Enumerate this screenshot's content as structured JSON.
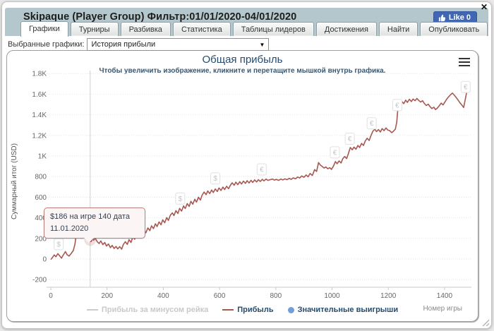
{
  "window": {
    "close_icon": "✕"
  },
  "header": {
    "title": "Skipaque (Player Group) Фильтр:01/01/2020-04/01/2020",
    "like_button": {
      "label": "Like 0"
    }
  },
  "tabs": [
    {
      "label": "Графики",
      "active": true
    },
    {
      "label": "Турниры",
      "active": false
    },
    {
      "label": "Разбивка",
      "active": false
    },
    {
      "label": "Статистика",
      "active": false
    },
    {
      "label": "Таблицы лидеров",
      "active": false
    },
    {
      "label": "Достижения",
      "active": false
    },
    {
      "label": "Найти",
      "active": false
    },
    {
      "label": "Опубликовать",
      "active": false
    }
  ],
  "controls": {
    "label": "Выбранные графики:",
    "selected": "История прибыли",
    "dropdown_icon": "▼"
  },
  "chart": {
    "title": "Общая прибыль",
    "subtitle": "Чтобы увеличить изображение, кликните и перетащите мышкой внутрь графика.",
    "tooltip_line1": "$186 на игре 140 дата",
    "tooltip_line2": "11.01.2020",
    "legend": [
      {
        "label": "Прибыль за минусом рейка",
        "marker": "line",
        "color": "#cccccc",
        "text_color": "#c9c9c9",
        "enabled": false
      },
      {
        "label": "Прибыль",
        "marker": "line",
        "color": "#a85751",
        "text_color": "#274b6d",
        "enabled": true
      },
      {
        "label": "Значительные выигрыши",
        "marker": "circle",
        "color": "#6f9fd8",
        "text_color": "#274b6d",
        "enabled": true
      }
    ]
  },
  "colors": {
    "header_bg": "#b4c7cc",
    "like_blue": "#4267b2",
    "line_red": "#a85751",
    "grid": "#e4e4e4",
    "tick_text": "#666666",
    "title_navy": "#274b6d"
  },
  "chart_data": {
    "type": "line",
    "title": "Общая прибыль",
    "subtitle": "Чтобы увеличить изображение, кликните и перетащите мышкой внутрь графика.",
    "xlabel": "Номер игры",
    "ylabel": "Суммарный итог (USD)",
    "xlim": [
      0,
      1495
    ],
    "ylim": [
      -270,
      1870
    ],
    "grid": true,
    "legend_position": "bottom",
    "x_ticks": [
      {
        "v": 0,
        "label": "0"
      },
      {
        "v": 200,
        "label": "200"
      },
      {
        "v": 400,
        "label": "400"
      },
      {
        "v": 600,
        "label": "600"
      },
      {
        "v": 800,
        "label": "800"
      },
      {
        "v": 1000,
        "label": "1000"
      },
      {
        "v": 1200,
        "label": "1200"
      },
      {
        "v": 1400,
        "label": "1400"
      }
    ],
    "y_ticks": [
      {
        "v": -200,
        "label": "-200"
      },
      {
        "v": 0,
        "label": "0"
      },
      {
        "v": 200,
        "label": "200"
      },
      {
        "v": 400,
        "label": "400"
      },
      {
        "v": 600,
        "label": "600"
      },
      {
        "v": 800,
        "label": "800"
      },
      {
        "v": 1000,
        "label": "1K"
      },
      {
        "v": 1200,
        "label": "1.2K"
      },
      {
        "v": 1400,
        "label": "1.4K"
      },
      {
        "v": 1600,
        "label": "1.6K"
      },
      {
        "v": 1800,
        "label": "1.8K"
      }
    ],
    "series": [
      {
        "name": "Прибыль",
        "color": "#a85751",
        "visible": true,
        "points": [
          [
            0,
            -5
          ],
          [
            6,
            15
          ],
          [
            12,
            40
          ],
          [
            18,
            22
          ],
          [
            25,
            52
          ],
          [
            32,
            28
          ],
          [
            38,
            8
          ],
          [
            45,
            42
          ],
          [
            52,
            72
          ],
          [
            58,
            42
          ],
          [
            65,
            28
          ],
          [
            72,
            52
          ],
          [
            80,
            82
          ],
          [
            86,
            148
          ],
          [
            90,
            232
          ],
          [
            96,
            212
          ],
          [
            102,
            238
          ],
          [
            108,
            202
          ],
          [
            115,
            225
          ],
          [
            122,
            205
          ],
          [
            130,
            215
          ],
          [
            136,
            192
          ],
          [
            140,
            186
          ],
          [
            146,
            212
          ],
          [
            152,
            182
          ],
          [
            158,
            202
          ],
          [
            165,
            168
          ],
          [
            172,
            150
          ],
          [
            178,
            175
          ],
          [
            185,
            140
          ],
          [
            192,
            160
          ],
          [
            198,
            126
          ],
          [
            205,
            146
          ],
          [
            212,
            110
          ],
          [
            218,
            132
          ],
          [
            225,
            102
          ],
          [
            232,
            122
          ],
          [
            238,
            98
          ],
          [
            245,
            120
          ],
          [
            252,
            96
          ],
          [
            258,
            142
          ],
          [
            265,
            168
          ],
          [
            272,
            142
          ],
          [
            278,
            188
          ],
          [
            285,
            160
          ],
          [
            292,
            218
          ],
          [
            298,
            192
          ],
          [
            305,
            242
          ],
          [
            312,
            215
          ],
          [
            318,
            262
          ],
          [
            325,
            235
          ],
          [
            332,
            282
          ],
          [
            338,
            255
          ],
          [
            345,
            302
          ],
          [
            352,
            275
          ],
          [
            358,
            322
          ],
          [
            365,
            295
          ],
          [
            372,
            342
          ],
          [
            378,
            315
          ],
          [
            385,
            360
          ],
          [
            392,
            332
          ],
          [
            398,
            380
          ],
          [
            405,
            352
          ],
          [
            412,
            402
          ],
          [
            418,
            375
          ],
          [
            425,
            425
          ],
          [
            432,
            448
          ],
          [
            438,
            422
          ],
          [
            445,
            470
          ],
          [
            452,
            442
          ],
          [
            458,
            492
          ],
          [
            465,
            465
          ],
          [
            472,
            515
          ],
          [
            478,
            490
          ],
          [
            485,
            538
          ],
          [
            492,
            510
          ],
          [
            498,
            560
          ],
          [
            505,
            532
          ],
          [
            512,
            580
          ],
          [
            518,
            552
          ],
          [
            525,
            600
          ],
          [
            532,
            572
          ],
          [
            538,
            620
          ],
          [
            545,
            650
          ],
          [
            552,
            625
          ],
          [
            558,
            660
          ],
          [
            565,
            635
          ],
          [
            572,
            670
          ],
          [
            578,
            645
          ],
          [
            585,
            680
          ],
          [
            592,
            655
          ],
          [
            598,
            690
          ],
          [
            605,
            665
          ],
          [
            612,
            698
          ],
          [
            618,
            674
          ],
          [
            625,
            706
          ],
          [
            632,
            682
          ],
          [
            638,
            713
          ],
          [
            645,
            740
          ],
          [
            652,
            716
          ],
          [
            658,
            746
          ],
          [
            665,
            722
          ],
          [
            672,
            750
          ],
          [
            678,
            728
          ],
          [
            685,
            756
          ],
          [
            692,
            734
          ],
          [
            698,
            760
          ],
          [
            705,
            738
          ],
          [
            712,
            764
          ],
          [
            718,
            743
          ],
          [
            725,
            768
          ],
          [
            732,
            748
          ],
          [
            738,
            770
          ],
          [
            745,
            753
          ],
          [
            752,
            773
          ],
          [
            758,
            758
          ],
          [
            765,
            776
          ],
          [
            772,
            763
          ],
          [
            780,
            770
          ],
          [
            788,
            776
          ],
          [
            795,
            766
          ],
          [
            802,
            773
          ],
          [
            810,
            763
          ],
          [
            818,
            776
          ],
          [
            825,
            768
          ],
          [
            832,
            778
          ],
          [
            840,
            770
          ],
          [
            848,
            783
          ],
          [
            855,
            773
          ],
          [
            862,
            788
          ],
          [
            870,
            778
          ],
          [
            878,
            796
          ],
          [
            885,
            786
          ],
          [
            892,
            806
          ],
          [
            900,
            793
          ],
          [
            908,
            816
          ],
          [
            915,
            798
          ],
          [
            922,
            830
          ],
          [
            930,
            810
          ],
          [
            938,
            868
          ],
          [
            945,
            850
          ],
          [
            952,
            936
          ],
          [
            958,
            913
          ],
          [
            965,
            898
          ],
          [
            972,
            883
          ],
          [
            978,
            893
          ],
          [
            985,
            876
          ],
          [
            992,
            886
          ],
          [
            998,
            870
          ],
          [
            1005,
            902
          ],
          [
            1012,
            945
          ],
          [
            1018,
            925
          ],
          [
            1025,
            952
          ],
          [
            1032,
            932
          ],
          [
            1038,
            972
          ],
          [
            1045,
            995
          ],
          [
            1052,
            975
          ],
          [
            1058,
            1022
          ],
          [
            1065,
            1082
          ],
          [
            1072,
            1060
          ],
          [
            1078,
            1086
          ],
          [
            1085,
            1066
          ],
          [
            1092,
            1102
          ],
          [
            1098,
            1082
          ],
          [
            1105,
            1122
          ],
          [
            1112,
            1102
          ],
          [
            1118,
            1145
          ],
          [
            1125,
            1172
          ],
          [
            1132,
            1150
          ],
          [
            1138,
            1195
          ],
          [
            1145,
            1240
          ],
          [
            1152,
            1260
          ],
          [
            1158,
            1236
          ],
          [
            1165,
            1256
          ],
          [
            1172,
            1233
          ],
          [
            1178,
            1266
          ],
          [
            1185,
            1246
          ],
          [
            1192,
            1272
          ],
          [
            1198,
            1252
          ],
          [
            1205,
            1246
          ],
          [
            1212,
            1226
          ],
          [
            1218,
            1240
          ],
          [
            1225,
            1260
          ],
          [
            1230,
            1328
          ],
          [
            1236,
            1518
          ],
          [
            1242,
            1494
          ],
          [
            1248,
            1530
          ],
          [
            1255,
            1508
          ],
          [
            1262,
            1542
          ],
          [
            1268,
            1520
          ],
          [
            1275,
            1550
          ],
          [
            1282,
            1528
          ],
          [
            1288,
            1553
          ],
          [
            1295,
            1536
          ],
          [
            1302,
            1558
          ],
          [
            1308,
            1540
          ],
          [
            1315,
            1523
          ],
          [
            1322,
            1536
          ],
          [
            1328,
            1510
          ],
          [
            1335,
            1490
          ],
          [
            1342,
            1503
          ],
          [
            1348,
            1480
          ],
          [
            1355,
            1460
          ],
          [
            1362,
            1473
          ],
          [
            1368,
            1450
          ],
          [
            1375,
            1466
          ],
          [
            1382,
            1490
          ],
          [
            1388,
            1513
          ],
          [
            1395,
            1496
          ],
          [
            1402,
            1526
          ],
          [
            1408,
            1553
          ],
          [
            1415,
            1576
          ],
          [
            1422,
            1596
          ],
          [
            1428,
            1610
          ],
          [
            1435,
            1590
          ],
          [
            1442,
            1566
          ],
          [
            1448,
            1543
          ],
          [
            1455,
            1516
          ],
          [
            1462,
            1493
          ],
          [
            1468,
            1470
          ],
          [
            1474,
            1553
          ],
          [
            1480,
            1638
          ]
        ]
      },
      {
        "name": "Прибыль за минусом рейка",
        "color": "#cccccc",
        "visible": false,
        "points": []
      },
      {
        "name": "Значительные выигрыши",
        "color": "#6f9fd8",
        "visible": true,
        "points": []
      }
    ],
    "win_markers": [
      {
        "symbol": "$",
        "game": 28
      },
      {
        "symbol": "$",
        "game": 460
      },
      {
        "symbol": "$",
        "game": 585
      },
      {
        "symbol": "€",
        "game": 750
      },
      {
        "symbol": "€",
        "game": 1010
      },
      {
        "symbol": "€",
        "game": 1063
      },
      {
        "symbol": "€",
        "game": 1141
      },
      {
        "symbol": "€",
        "game": 1232
      },
      {
        "symbol": "€",
        "game": 1475
      }
    ],
    "highlight": {
      "game": 140,
      "value": 186,
      "tooltip": "$186 на игре 140 дата 11.01.2020"
    }
  }
}
